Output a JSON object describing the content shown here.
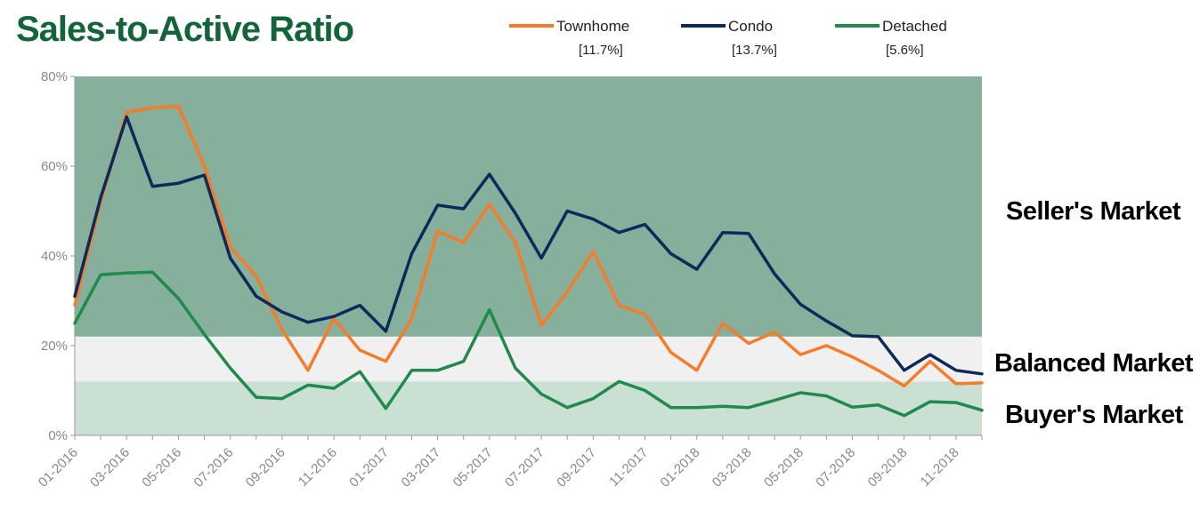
{
  "chart_data": {
    "type": "line",
    "title": "Sales-to-Active Ratio",
    "ylim": [
      0,
      80
    ],
    "yticks": [
      "0%",
      "20%",
      "40%",
      "60%",
      "80%"
    ],
    "xlabels": [
      "01-2016",
      "03-2016",
      "05-2016",
      "07-2016",
      "09-2016",
      "11-2016",
      "01-2017",
      "03-2017",
      "05-2017",
      "07-2017",
      "09-2017",
      "11-2017",
      "01-2018",
      "03-2018",
      "05-2018",
      "07-2018",
      "09-2018",
      "11-2018"
    ],
    "categories": [
      "01-2016",
      "02-2016",
      "03-2016",
      "04-2016",
      "05-2016",
      "06-2016",
      "07-2016",
      "08-2016",
      "09-2016",
      "10-2016",
      "11-2016",
      "12-2016",
      "01-2017",
      "02-2017",
      "03-2017",
      "04-2017",
      "05-2017",
      "06-2017",
      "07-2017",
      "08-2017",
      "09-2017",
      "10-2017",
      "11-2017",
      "12-2017",
      "01-2018",
      "02-2018",
      "03-2018",
      "04-2018",
      "05-2018",
      "06-2018",
      "07-2018",
      "08-2018",
      "09-2018",
      "10-2018",
      "11-2018",
      "12-2018"
    ],
    "zones": [
      {
        "label": "Seller's Market",
        "from": 22,
        "to": 80,
        "color": "#86b09b"
      },
      {
        "label": "Balanced Market",
        "from": 12,
        "to": 22,
        "color": "#f0f0f0"
      },
      {
        "label": "Buyer's Market",
        "from": 0,
        "to": 12,
        "color": "#c9e0d3"
      }
    ],
    "series": [
      {
        "name": "Townhome",
        "current": "[11.7%]",
        "color": "#f47c2a",
        "values": [
          29,
          52,
          72,
          73,
          73.3,
          60,
          42,
          35.5,
          23.5,
          14.5,
          26,
          19,
          16.5,
          26,
          45.5,
          43,
          51.5,
          43,
          24.5,
          32,
          41,
          29,
          27,
          18.5,
          14.5,
          25,
          20.5,
          23,
          18,
          20,
          17.5,
          14.5,
          11,
          16.5,
          11.5,
          11.7
        ]
      },
      {
        "name": "Condo",
        "current": "[13.7%]",
        "color": "#0e2a5a",
        "values": [
          31,
          53,
          71,
          55.5,
          56.2,
          58,
          39.5,
          31,
          27.5,
          25.2,
          26.5,
          29,
          23.2,
          40.5,
          51.3,
          50.5,
          58.2,
          49.5,
          39.5,
          50,
          48.2,
          45.2,
          47,
          40.5,
          37,
          45.2,
          45,
          36,
          29.2,
          25.5,
          22.2,
          22,
          14.5,
          18,
          14.5,
          13.7
        ]
      },
      {
        "name": "Detached",
        "current": "[5.6%]",
        "color": "#1f8a4c",
        "values": [
          25,
          35.8,
          36.2,
          36.4,
          30.5,
          22.5,
          15,
          8.5,
          8.2,
          11.2,
          10.5,
          14.2,
          6,
          14.5,
          14.5,
          16.5,
          28,
          15,
          9.2,
          6.2,
          8.2,
          12,
          10,
          6.2,
          6.2,
          6.5,
          6.2,
          7.8,
          9.5,
          8.8,
          6.3,
          6.8,
          4.4,
          7.5,
          7.3,
          5.6
        ]
      }
    ]
  }
}
